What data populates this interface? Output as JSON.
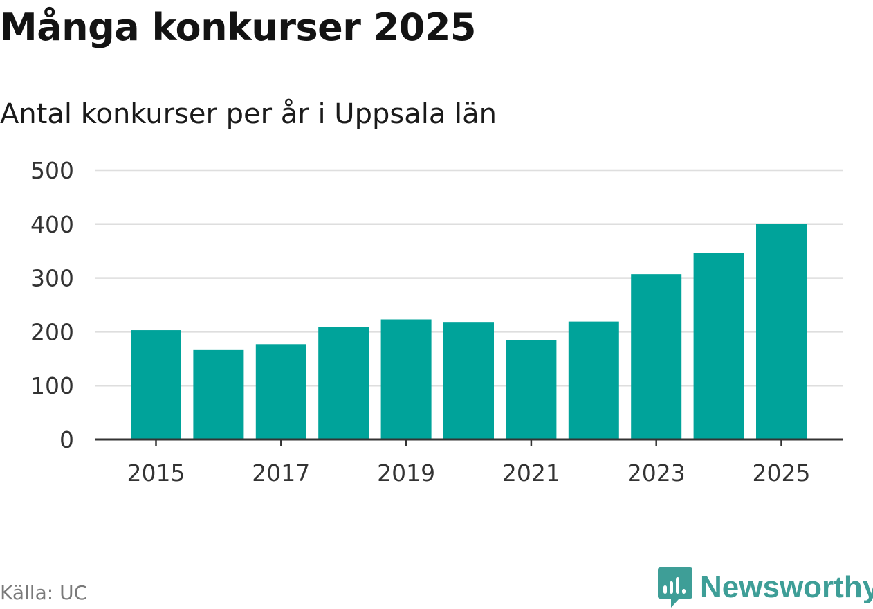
{
  "header": {
    "title": "Många konkurser 2025",
    "subtitle": "Antal konkurser per år i Uppsala län"
  },
  "chart_data": {
    "type": "bar",
    "title": "Många konkurser 2025",
    "subtitle": "Antal konkurser per år i Uppsala län",
    "xlabel": "",
    "ylabel": "",
    "categories": [
      "2015",
      "2016",
      "2017",
      "2018",
      "2019",
      "2020",
      "2021",
      "2022",
      "2023",
      "2024",
      "2025"
    ],
    "values": [
      203,
      166,
      177,
      209,
      223,
      217,
      185,
      219,
      307,
      346,
      400
    ],
    "x_tick_labels": [
      "2015",
      "2017",
      "2019",
      "2021",
      "2023",
      "2025"
    ],
    "ylim": [
      0,
      500
    ],
    "y_ticks": [
      0,
      100,
      200,
      300,
      400,
      500
    ],
    "grid": true,
    "legend": "none",
    "bar_color": "#00a39a"
  },
  "footer": {
    "source": "Källa: UC",
    "brand": "Newsworthy",
    "brand_color": "#3e9e97",
    "logo_icon": "bar-chart-bubble-icon"
  }
}
